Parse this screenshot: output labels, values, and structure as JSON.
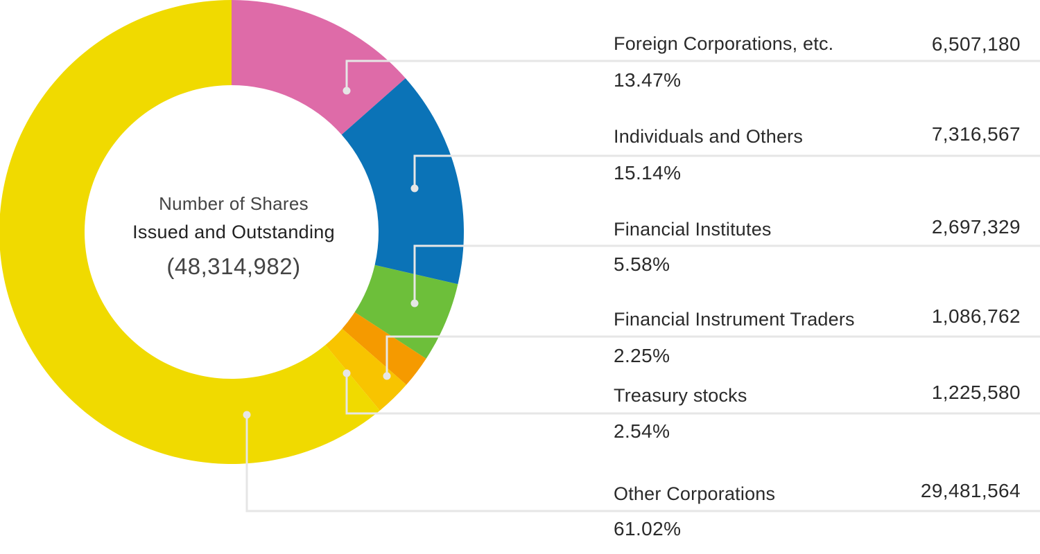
{
  "center": {
    "line1": "Number of Shares",
    "line2": "Issued and Outstanding",
    "total": "(48,314,982)"
  },
  "chart_data": {
    "type": "pie",
    "style": "donut",
    "total": 48314982,
    "slices": [
      {
        "label": "Foreign Corporations, etc.",
        "value": 6507180,
        "value_text": "6,507,180",
        "percent": 13.47,
        "percent_text": "13.47%",
        "color": "#de6ba8"
      },
      {
        "label": "Individuals and Others",
        "value": 7316567,
        "value_text": "7,316,567",
        "percent": 15.14,
        "percent_text": "15.14%",
        "color": "#0b73b7"
      },
      {
        "label": "Financial Institutes",
        "value": 2697329,
        "value_text": "2,697,329",
        "percent": 5.58,
        "percent_text": "5.58%",
        "color": "#6dbf3a"
      },
      {
        "label": "Financial Instrument Traders",
        "value": 1086762,
        "value_text": "1,086,762",
        "percent": 2.25,
        "percent_text": "2.25%",
        "color": "#f59a00"
      },
      {
        "label": "Treasury stocks",
        "value": 1225580,
        "value_text": "1,225,580",
        "percent": 2.54,
        "percent_text": "2.54%",
        "color": "#f8c400"
      },
      {
        "label": "Other Corporations",
        "value": 29481564,
        "value_text": "29,481,564",
        "percent": 61.02,
        "percent_text": "61.02%",
        "color": "#f0da00"
      }
    ],
    "connector_color": "#e6e6e6"
  }
}
